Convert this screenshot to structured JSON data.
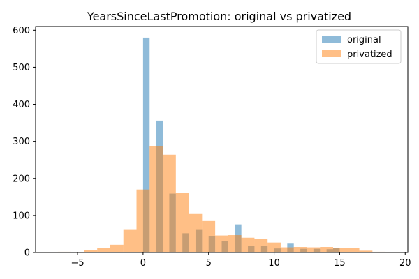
{
  "chart_data": {
    "type": "histogram",
    "title": "YearsSinceLastPromotion: original vs privatized",
    "xlabel": "",
    "ylabel": "",
    "xlim": [
      -8.2,
      20.2
    ],
    "ylim": [
      0,
      610
    ],
    "xticks": [
      -5,
      0,
      5,
      10,
      15,
      20
    ],
    "yticks": [
      0,
      100,
      200,
      300,
      400,
      500,
      600
    ],
    "legend_position": "top-right",
    "series": [
      {
        "name": "original",
        "color": "#1f77b4",
        "alpha": 0.5,
        "bin_width": 0.5,
        "bins": [
          {
            "x0": 0.0,
            "x1": 0.5,
            "count": 580
          },
          {
            "x0": 1.0,
            "x1": 1.5,
            "count": 356
          },
          {
            "x0": 2.0,
            "x1": 2.5,
            "count": 159
          },
          {
            "x0": 3.0,
            "x1": 3.5,
            "count": 52
          },
          {
            "x0": 4.0,
            "x1": 4.5,
            "count": 61
          },
          {
            "x0": 5.0,
            "x1": 5.5,
            "count": 45
          },
          {
            "x0": 6.0,
            "x1": 6.5,
            "count": 32
          },
          {
            "x0": 7.0,
            "x1": 7.5,
            "count": 76
          },
          {
            "x0": 8.0,
            "x1": 8.5,
            "count": 18
          },
          {
            "x0": 9.0,
            "x1": 9.5,
            "count": 17
          },
          {
            "x0": 10.0,
            "x1": 10.5,
            "count": 11
          },
          {
            "x0": 11.0,
            "x1": 11.5,
            "count": 24
          },
          {
            "x0": 12.0,
            "x1": 12.5,
            "count": 10
          },
          {
            "x0": 13.0,
            "x1": 13.5,
            "count": 10
          },
          {
            "x0": 14.0,
            "x1": 14.5,
            "count": 9
          },
          {
            "x0": 14.5,
            "x1": 15.0,
            "count": 13
          }
        ]
      },
      {
        "name": "privatized",
        "color": "#ff7f0e",
        "alpha": 0.5,
        "bin_width": 1.0,
        "bins": [
          {
            "x0": -6.5,
            "x1": -5.5,
            "count": 2
          },
          {
            "x0": -5.5,
            "x1": -4.5,
            "count": 1
          },
          {
            "x0": -4.5,
            "x1": -3.5,
            "count": 6
          },
          {
            "x0": -3.5,
            "x1": -2.5,
            "count": 13
          },
          {
            "x0": -2.5,
            "x1": -1.5,
            "count": 21
          },
          {
            "x0": -1.5,
            "x1": -0.5,
            "count": 61
          },
          {
            "x0": -0.5,
            "x1": 0.5,
            "count": 170
          },
          {
            "x0": 0.5,
            "x1": 1.5,
            "count": 287
          },
          {
            "x0": 1.5,
            "x1": 2.5,
            "count": 264
          },
          {
            "x0": 2.5,
            "x1": 3.5,
            "count": 161
          },
          {
            "x0": 3.5,
            "x1": 4.5,
            "count": 104
          },
          {
            "x0": 4.5,
            "x1": 5.5,
            "count": 85
          },
          {
            "x0": 5.5,
            "x1": 6.5,
            "count": 46
          },
          {
            "x0": 6.5,
            "x1": 7.5,
            "count": 47
          },
          {
            "x0": 7.5,
            "x1": 8.5,
            "count": 40
          },
          {
            "x0": 8.5,
            "x1": 9.5,
            "count": 37
          },
          {
            "x0": 9.5,
            "x1": 10.5,
            "count": 27
          },
          {
            "x0": 10.5,
            "x1": 11.5,
            "count": 14
          },
          {
            "x0": 11.5,
            "x1": 12.5,
            "count": 15
          },
          {
            "x0": 12.5,
            "x1": 13.5,
            "count": 14
          },
          {
            "x0": 13.5,
            "x1": 14.5,
            "count": 15
          },
          {
            "x0": 14.5,
            "x1": 15.5,
            "count": 12
          },
          {
            "x0": 15.5,
            "x1": 16.5,
            "count": 13
          },
          {
            "x0": 16.5,
            "x1": 17.5,
            "count": 5
          },
          {
            "x0": 17.5,
            "x1": 18.5,
            "count": 2
          }
        ]
      }
    ]
  }
}
